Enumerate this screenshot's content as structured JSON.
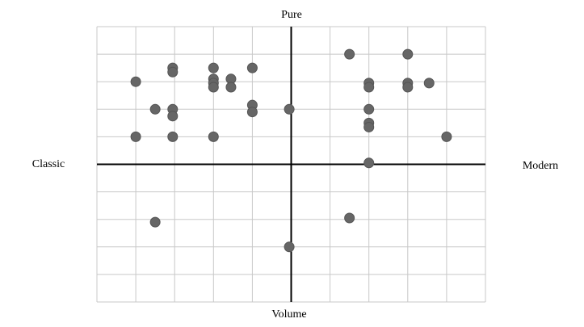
{
  "chart_data": {
    "type": "scatter",
    "top_label": "Pure",
    "bottom_label": "Volume",
    "left_label": "Classic",
    "right_label": "Modern",
    "x": [
      1.5,
      3,
      -4,
      -3.05,
      -3.05,
      -2,
      -2,
      -2,
      -2,
      -1.55,
      -1.55,
      -1,
      -3.5,
      -3.05,
      -3.05,
      -1,
      -1,
      -0.05,
      -4,
      -3.05,
      -2,
      2,
      2,
      3,
      3,
      3.55,
      2,
      2,
      2,
      4,
      2,
      -3.5,
      1.5,
      -0.05
    ],
    "values": [
      4,
      4,
      3,
      3.5,
      3.35,
      3.5,
      3.1,
      2.95,
      2.8,
      3.1,
      2.8,
      3.5,
      2,
      2,
      1.75,
      2.15,
      1.9,
      2,
      1,
      1,
      1,
      2.95,
      2.8,
      2.95,
      2.8,
      2.95,
      2,
      1.5,
      1.35,
      1,
      0.05,
      -2.1,
      -1.95,
      -3
    ],
    "color": "#666666",
    "xlim": [
      -5,
      5
    ],
    "ylim": [
      -5,
      5
    ],
    "xticks": [
      -5,
      -4,
      -3,
      -2,
      -1,
      0,
      1,
      2,
      3,
      4,
      5
    ],
    "yticks": [
      -5,
      -4,
      -3,
      -2,
      -1,
      0,
      1,
      2,
      3,
      4,
      5
    ],
    "grid": true
  }
}
